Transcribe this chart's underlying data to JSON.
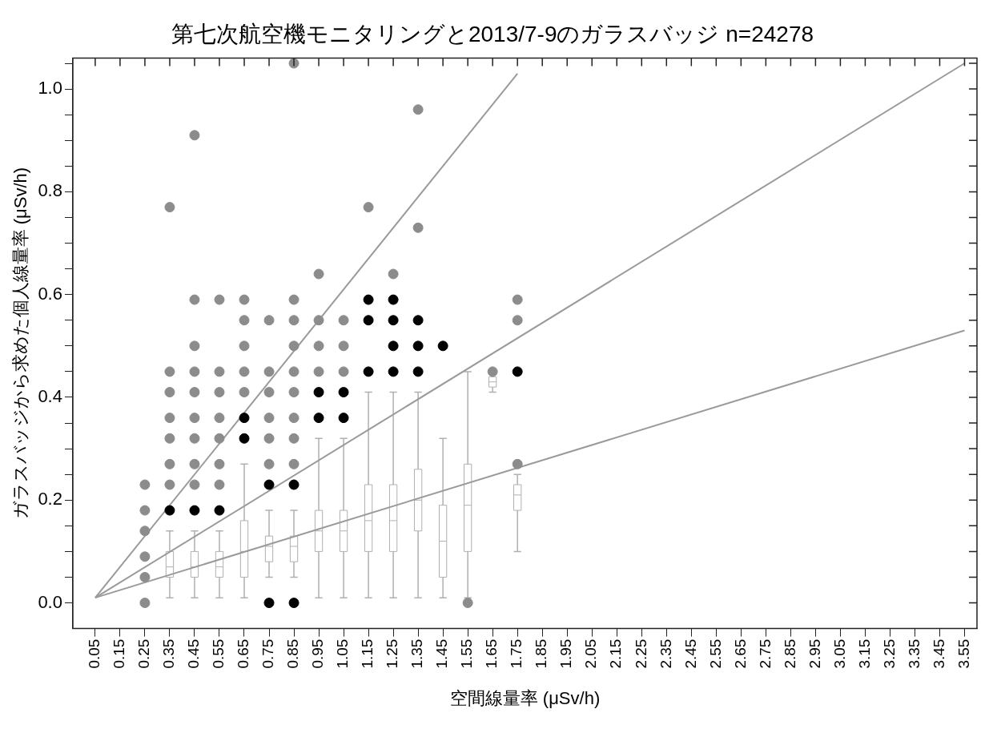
{
  "chart_data": {
    "type": "box",
    "title": "第七次航空機モニタリングと2013/7-9のガラスバッジ n=24278",
    "xlabel": "空間線量率 (μSv/h)",
    "ylabel": "ガラスバッジから求めた個人線量率 (μSv/h)",
    "categories": [
      "0.05",
      "0.15",
      "0.25",
      "0.35",
      "0.45",
      "0.55",
      "0.65",
      "0.75",
      "0.85",
      "0.95",
      "1.05",
      "1.15",
      "1.25",
      "1.35",
      "1.45",
      "1.55",
      "1.65",
      "1.75",
      "1.85",
      "1.95",
      "2.05",
      "2.15",
      "2.25",
      "2.35",
      "2.45",
      "2.55",
      "2.65",
      "2.75",
      "2.85",
      "2.95",
      "3.05",
      "3.15",
      "3.25",
      "3.35",
      "3.45",
      "3.55"
    ],
    "ylim": [
      -0.05,
      1.06
    ],
    "yticks": [
      {
        "value": 0,
        "label": "0.0"
      },
      {
        "value": 0.05,
        "label": null
      },
      {
        "value": 0.1,
        "label": null
      },
      {
        "value": 0.15,
        "label": null
      },
      {
        "value": 0.2,
        "label": "0.2"
      },
      {
        "value": 0.25,
        "label": null
      },
      {
        "value": 0.3,
        "label": null
      },
      {
        "value": 0.35,
        "label": null
      },
      {
        "value": 0.4,
        "label": "0.4"
      },
      {
        "value": 0.45,
        "label": null
      },
      {
        "value": 0.5,
        "label": null
      },
      {
        "value": 0.55,
        "label": null
      },
      {
        "value": 0.6,
        "label": "0.6"
      },
      {
        "value": 0.65,
        "label": null
      },
      {
        "value": 0.7,
        "label": null
      },
      {
        "value": 0.75,
        "label": null
      },
      {
        "value": 0.8,
        "label": "0.8"
      },
      {
        "value": 0.85,
        "label": null
      },
      {
        "value": 0.9,
        "label": null
      },
      {
        "value": 0.95,
        "label": null
      },
      {
        "value": 1,
        "label": "1.0"
      },
      {
        "value": 1.05,
        "label": null
      }
    ],
    "grid": false,
    "legend": false,
    "series": [
      {
        "type": "box",
        "color": "#b0b0b0",
        "boxes": [
          null,
          null,
          null,
          {
            "low": 0.01,
            "q1": 0.05,
            "median": 0.07,
            "q3": 0.1,
            "high": 0.14
          },
          {
            "low": 0.01,
            "q1": 0.05,
            "median": 0.07,
            "q3": 0.1,
            "high": 0.14
          },
          {
            "low": 0.01,
            "q1": 0.05,
            "median": 0.07,
            "q3": 0.1,
            "high": 0.14
          },
          {
            "low": 0.01,
            "q1": 0.05,
            "median": 0.1,
            "q3": 0.16,
            "high": 0.27
          },
          {
            "low": 0.05,
            "q1": 0.08,
            "median": 0.11,
            "q3": 0.13,
            "high": 0.18
          },
          {
            "low": 0.05,
            "q1": 0.08,
            "median": 0.11,
            "q3": 0.13,
            "high": 0.18
          },
          {
            "low": 0.01,
            "q1": 0.1,
            "median": 0.14,
            "q3": 0.18,
            "high": 0.32
          },
          {
            "low": 0.01,
            "q1": 0.1,
            "median": 0.14,
            "q3": 0.18,
            "high": 0.32
          },
          {
            "low": 0.01,
            "q1": 0.1,
            "median": 0.16,
            "q3": 0.23,
            "high": 0.41
          },
          {
            "low": 0.01,
            "q1": 0.1,
            "median": 0.16,
            "q3": 0.23,
            "high": 0.41
          },
          {
            "low": 0.01,
            "q1": 0.14,
            "median": 0.2,
            "q3": 0.26,
            "high": 0.41
          },
          {
            "low": 0.01,
            "q1": 0.05,
            "median": 0.12,
            "q3": 0.19,
            "high": 0.32
          },
          {
            "low": 0.01,
            "q1": 0.1,
            "median": 0.19,
            "q3": 0.27,
            "high": 0.45
          },
          {
            "low": 0.41,
            "q1": 0.42,
            "median": 0.43,
            "q3": 0.44,
            "high": 0.45
          },
          {
            "low": 0.1,
            "q1": 0.18,
            "median": 0.21,
            "q3": 0.23,
            "high": 0.25
          },
          null,
          null,
          null,
          null,
          null,
          null,
          null,
          null,
          null,
          null,
          null,
          null,
          null,
          null,
          null,
          null,
          null,
          null
        ]
      },
      {
        "type": "scatter",
        "marker": "circle",
        "color": "#8c8c8c",
        "x": [
          "0.25",
          "0.25",
          "0.25",
          "0.25",
          "0.25",
          "0.25",
          "0.35",
          "0.35",
          "0.35",
          "0.35",
          "0.35",
          "0.35",
          "0.35",
          "0.45",
          "0.45",
          "0.45",
          "0.45",
          "0.45",
          "0.45",
          "0.45",
          "0.45",
          "0.45",
          "0.55",
          "0.55",
          "0.55",
          "0.55",
          "0.55",
          "0.55",
          "0.55",
          "0.65",
          "0.65",
          "0.65",
          "0.65",
          "0.65",
          "0.75",
          "0.75",
          "0.75",
          "0.75",
          "0.75",
          "0.75",
          "0.85",
          "0.85",
          "0.85",
          "0.85",
          "0.85",
          "0.85",
          "0.85",
          "0.85",
          "0.85",
          "0.95",
          "0.95",
          "0.95",
          "0.95",
          "1.05",
          "1.05",
          "1.05",
          "1.15",
          "1.25",
          "1.35",
          "1.35",
          "1.55",
          "1.65",
          "1.75",
          "1.75",
          "1.75"
        ],
        "values": [
          0.23,
          0.18,
          0.14,
          0.09,
          0.05,
          0.0,
          0.77,
          0.45,
          0.41,
          0.36,
          0.32,
          0.27,
          0.23,
          0.91,
          0.59,
          0.5,
          0.45,
          0.41,
          0.36,
          0.32,
          0.27,
          0.23,
          0.59,
          0.45,
          0.41,
          0.36,
          0.32,
          0.27,
          0.23,
          0.59,
          0.55,
          0.5,
          0.45,
          0.41,
          0.55,
          0.45,
          0.41,
          0.36,
          0.32,
          0.27,
          1.05,
          0.59,
          0.55,
          0.5,
          0.45,
          0.41,
          0.36,
          0.32,
          0.27,
          0.64,
          0.55,
          0.5,
          0.45,
          0.55,
          0.5,
          0.45,
          0.77,
          0.64,
          0.96,
          0.73,
          0.0,
          0.45,
          0.59,
          0.55,
          0.27
        ]
      },
      {
        "type": "scatter",
        "marker": "circle",
        "color": "#000000",
        "x": [
          "0.35",
          "0.45",
          "0.55",
          "0.65",
          "0.65",
          "0.75",
          "0.75",
          "0.85",
          "0.85",
          "0.95",
          "0.95",
          "1.05",
          "1.05",
          "1.15",
          "1.15",
          "1.15",
          "1.25",
          "1.25",
          "1.25",
          "1.25",
          "1.35",
          "1.35",
          "1.35",
          "1.45",
          "1.75"
        ],
        "values": [
          0.18,
          0.18,
          0.18,
          0.36,
          0.32,
          0.23,
          0.0,
          0.23,
          0.0,
          0.41,
          0.36,
          0.41,
          0.36,
          0.59,
          0.55,
          0.45,
          0.59,
          0.55,
          0.5,
          0.45,
          0.55,
          0.5,
          0.45,
          0.5,
          0.45
        ]
      },
      {
        "type": "line",
        "color": "#9a9a9a",
        "x": [
          "0.05",
          "1.75"
        ],
        "values": [
          0.01,
          1.03
        ]
      },
      {
        "type": "line",
        "color": "#9a9a9a",
        "x": [
          "0.05",
          "3.55"
        ],
        "values": [
          0.01,
          1.05
        ]
      },
      {
        "type": "line",
        "color": "#9a9a9a",
        "x": [
          "0.05",
          "3.55"
        ],
        "values": [
          0.01,
          0.53
        ]
      }
    ]
  }
}
